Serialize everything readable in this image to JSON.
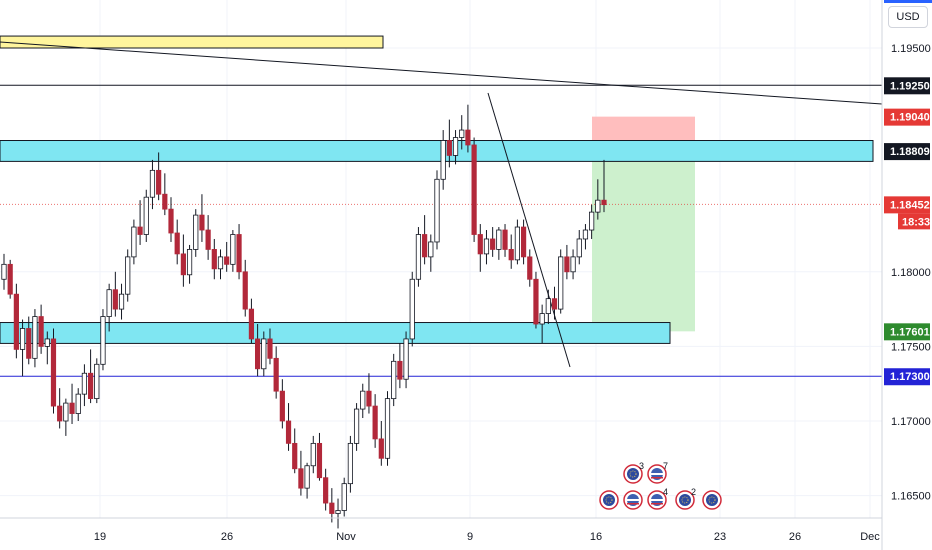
{
  "currency": "USD",
  "colors": {
    "up": "#ffffff",
    "up_border": "#131722",
    "down": "#b2283a",
    "zone": "#7fe6f2",
    "resist_zone": "#fff59d",
    "stop": "#ffb3b3",
    "target": "#c8eec8",
    "blue_line": "#2323d6",
    "current": "#e53935"
  },
  "chart_data": {
    "type": "candlestick",
    "title": "",
    "xlabel": "",
    "ylabel": "",
    "ylim": [
      1.1627,
      1.199
    ],
    "x_ticks": [
      "19",
      "26",
      "Nov",
      "9",
      "16",
      "23",
      "26",
      "Dec"
    ],
    "y_ticks": [
      "1.19500",
      "1.18000",
      "1.17500",
      "1.17000",
      "1.16500"
    ],
    "levels": [
      {
        "label": "1.19250",
        "value": 1.1925,
        "style": "black"
      },
      {
        "label": "1.19040",
        "value": 1.1904,
        "style": "red"
      },
      {
        "label": "1.18809",
        "value": 1.18809,
        "style": "black"
      },
      {
        "label": "1.18452",
        "value": 1.18452,
        "style": "red",
        "countdown": "18:33"
      },
      {
        "label": "1.17601",
        "value": 1.17601,
        "style": "green"
      },
      {
        "label": "1.17300",
        "value": 1.173,
        "style": "blue"
      }
    ],
    "zones": [
      {
        "name": "resistance",
        "low": 1.1874,
        "high": 1.1888
      },
      {
        "name": "support",
        "low": 1.1752,
        "high": 1.1766
      },
      {
        "name": "upper",
        "low": 1.195,
        "high": 1.1958
      }
    ],
    "position": {
      "entry": 1.18809,
      "stop": 1.1904,
      "target": 1.17601
    },
    "candles": [
      [
        1.1795,
        1.1812,
        1.1788,
        1.1805
      ],
      [
        1.1805,
        1.1808,
        1.1782,
        1.1785
      ],
      [
        1.1785,
        1.1792,
        1.1742,
        1.1748
      ],
      [
        1.1748,
        1.1768,
        1.173,
        1.1762
      ],
      [
        1.1762,
        1.177,
        1.1738,
        1.1742
      ],
      [
        1.1742,
        1.1775,
        1.1736,
        1.177
      ],
      [
        1.177,
        1.1778,
        1.1745,
        1.175
      ],
      [
        1.175,
        1.176,
        1.1738,
        1.1755
      ],
      [
        1.1755,
        1.1762,
        1.1705,
        1.171
      ],
      [
        1.171,
        1.1722,
        1.1695,
        1.17
      ],
      [
        1.17,
        1.1715,
        1.169,
        1.1712
      ],
      [
        1.1712,
        1.1725,
        1.1698,
        1.1705
      ],
      [
        1.1705,
        1.1722,
        1.17,
        1.1718
      ],
      [
        1.1718,
        1.1738,
        1.171,
        1.1732
      ],
      [
        1.1732,
        1.1748,
        1.1712,
        1.1715
      ],
      [
        1.1715,
        1.1742,
        1.1712,
        1.1738
      ],
      [
        1.1738,
        1.1775,
        1.1734,
        1.177
      ],
      [
        1.177,
        1.1792,
        1.176,
        1.1788
      ],
      [
        1.1788,
        1.18,
        1.177,
        1.1775
      ],
      [
        1.1775,
        1.1792,
        1.1768,
        1.1785
      ],
      [
        1.1785,
        1.1815,
        1.178,
        1.181
      ],
      [
        1.181,
        1.1835,
        1.1805,
        1.183
      ],
      [
        1.183,
        1.1848,
        1.1818,
        1.1825
      ],
      [
        1.1825,
        1.1855,
        1.182,
        1.185
      ],
      [
        1.185,
        1.1875,
        1.1842,
        1.1868
      ],
      [
        1.1868,
        1.188,
        1.1848,
        1.1852
      ],
      [
        1.1852,
        1.1866,
        1.1838,
        1.1842
      ],
      [
        1.1842,
        1.185,
        1.182,
        1.1826
      ],
      [
        1.1826,
        1.1835,
        1.1805,
        1.1812
      ],
      [
        1.1812,
        1.1825,
        1.179,
        1.1798
      ],
      [
        1.1798,
        1.1818,
        1.1792,
        1.1815
      ],
      [
        1.1815,
        1.1842,
        1.181,
        1.1838
      ],
      [
        1.1838,
        1.1852,
        1.182,
        1.1828
      ],
      [
        1.1828,
        1.1838,
        1.1808,
        1.1815
      ],
      [
        1.1815,
        1.1822,
        1.1795,
        1.1802
      ],
      [
        1.1802,
        1.1815,
        1.1795,
        1.181
      ],
      [
        1.181,
        1.182,
        1.18,
        1.1805
      ],
      [
        1.1805,
        1.1828,
        1.18,
        1.1825
      ],
      [
        1.1825,
        1.1832,
        1.1795,
        1.18
      ],
      [
        1.18,
        1.1808,
        1.177,
        1.1775
      ],
      [
        1.1775,
        1.1782,
        1.1752,
        1.1755
      ],
      [
        1.1755,
        1.1765,
        1.173,
        1.1735
      ],
      [
        1.1735,
        1.176,
        1.173,
        1.1755
      ],
      [
        1.1755,
        1.1762,
        1.1738,
        1.1742
      ],
      [
        1.1742,
        1.175,
        1.1715,
        1.172
      ],
      [
        1.172,
        1.1728,
        1.1695,
        1.17
      ],
      [
        1.17,
        1.1712,
        1.168,
        1.1685
      ],
      [
        1.1685,
        1.1695,
        1.1665,
        1.1668
      ],
      [
        1.1668,
        1.168,
        1.165,
        1.1655
      ],
      [
        1.1655,
        1.1672,
        1.1648,
        1.167
      ],
      [
        1.167,
        1.169,
        1.1665,
        1.1685
      ],
      [
        1.1685,
        1.1692,
        1.166,
        1.1662
      ],
      [
        1.1662,
        1.1668,
        1.164,
        1.1645
      ],
      [
        1.1645,
        1.1655,
        1.1632,
        1.1638
      ],
      [
        1.1638,
        1.1648,
        1.1628,
        1.164
      ],
      [
        1.164,
        1.1662,
        1.1636,
        1.1658
      ],
      [
        1.1658,
        1.169,
        1.1652,
        1.1685
      ],
      [
        1.1685,
        1.1712,
        1.168,
        1.1708
      ],
      [
        1.1708,
        1.1725,
        1.1702,
        1.172
      ],
      [
        1.172,
        1.1732,
        1.1705,
        1.171
      ],
      [
        1.171,
        1.1718,
        1.1682,
        1.1688
      ],
      [
        1.1688,
        1.17,
        1.167,
        1.1675
      ],
      [
        1.1675,
        1.172,
        1.167,
        1.1715
      ],
      [
        1.1715,
        1.1745,
        1.171,
        1.174
      ],
      [
        1.174,
        1.1752,
        1.1722,
        1.1728
      ],
      [
        1.1728,
        1.176,
        1.1722,
        1.1755
      ],
      [
        1.1755,
        1.18,
        1.175,
        1.1795
      ],
      [
        1.1795,
        1.183,
        1.179,
        1.1825
      ],
      [
        1.1825,
        1.1838,
        1.1805,
        1.181
      ],
      [
        1.181,
        1.1825,
        1.18,
        1.182
      ],
      [
        1.182,
        1.1868,
        1.1815,
        1.1862
      ],
      [
        1.1862,
        1.1895,
        1.1855,
        1.1888
      ],
      [
        1.1888,
        1.1902,
        1.187,
        1.1878
      ],
      [
        1.1878,
        1.1895,
        1.1872,
        1.189
      ],
      [
        1.189,
        1.1905,
        1.1882,
        1.1895
      ],
      [
        1.1895,
        1.1912,
        1.188,
        1.1885
      ],
      [
        1.1885,
        1.189,
        1.182,
        1.1825
      ],
      [
        1.1825,
        1.1832,
        1.18,
        1.1812
      ],
      [
        1.1812,
        1.1828,
        1.1805,
        1.1822
      ],
      [
        1.1822,
        1.183,
        1.181,
        1.1815
      ],
      [
        1.1815,
        1.183,
        1.1808,
        1.1828
      ],
      [
        1.1828,
        1.1832,
        1.181,
        1.1815
      ],
      [
        1.1815,
        1.1825,
        1.1802,
        1.1808
      ],
      [
        1.1808,
        1.1835,
        1.1805,
        1.183
      ],
      [
        1.183,
        1.1835,
        1.1805,
        1.181
      ],
      [
        1.181,
        1.1815,
        1.179,
        1.1795
      ],
      [
        1.1795,
        1.18,
        1.1762,
        1.1765
      ],
      [
        1.1765,
        1.1778,
        1.1752,
        1.1772
      ],
      [
        1.1772,
        1.1788,
        1.1765,
        1.1782
      ],
      [
        1.1782,
        1.179,
        1.1768,
        1.1775
      ],
      [
        1.1775,
        1.1815,
        1.1772,
        1.181
      ],
      [
        1.181,
        1.1818,
        1.1795,
        1.18
      ],
      [
        1.18,
        1.1815,
        1.1795,
        1.181
      ],
      [
        1.181,
        1.1828,
        1.1805,
        1.1822
      ],
      [
        1.1822,
        1.1832,
        1.1815,
        1.1828
      ],
      [
        1.1828,
        1.1845,
        1.1822,
        1.184
      ],
      [
        1.184,
        1.1862,
        1.1835,
        1.1848
      ],
      [
        1.1848,
        1.1875,
        1.184,
        1.1845
      ]
    ],
    "events": [
      {
        "flag": "eu",
        "count": ""
      },
      {
        "flag": "eu",
        "count": "3"
      },
      {
        "flag": "us",
        "count": ""
      },
      {
        "flag": "us",
        "count": "7"
      },
      {
        "flag": "us",
        "count": "4"
      },
      {
        "flag": "eu",
        "count": "2"
      },
      {
        "flag": "eu",
        "count": ""
      }
    ]
  }
}
